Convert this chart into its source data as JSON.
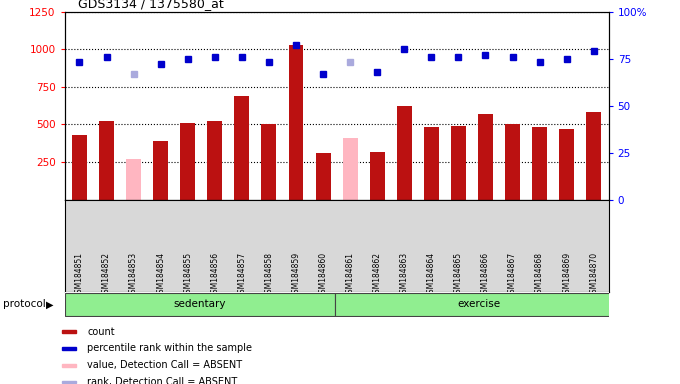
{
  "title": "GDS3134 / 1375580_at",
  "samples": [
    "GSM184851",
    "GSM184852",
    "GSM184853",
    "GSM184854",
    "GSM184855",
    "GSM184856",
    "GSM184857",
    "GSM184858",
    "GSM184859",
    "GSM184860",
    "GSM184861",
    "GSM184862",
    "GSM184863",
    "GSM184864",
    "GSM184865",
    "GSM184866",
    "GSM184867",
    "GSM184868",
    "GSM184869",
    "GSM184870"
  ],
  "count_values": [
    430,
    520,
    270,
    390,
    510,
    520,
    690,
    500,
    1030,
    310,
    410,
    320,
    620,
    480,
    490,
    570,
    500,
    480,
    470,
    580
  ],
  "count_absent": [
    false,
    false,
    true,
    false,
    false,
    false,
    false,
    false,
    false,
    false,
    true,
    false,
    false,
    false,
    false,
    false,
    false,
    false,
    false,
    false
  ],
  "rank_values": [
    73,
    76,
    67,
    72,
    75,
    76,
    76,
    73,
    82,
    67,
    73,
    68,
    80,
    76,
    76,
    77,
    76,
    73,
    75,
    79
  ],
  "rank_absent": [
    false,
    false,
    true,
    false,
    false,
    false,
    false,
    false,
    false,
    false,
    true,
    false,
    false,
    false,
    false,
    false,
    false,
    false,
    false,
    false
  ],
  "ylim_left": [
    0,
    1250
  ],
  "ylim_right": [
    0,
    100
  ],
  "yticks_left": [
    250,
    500,
    750,
    1000,
    1250
  ],
  "yticks_right": [
    0,
    25,
    50,
    75,
    100
  ],
  "ytick_right_labels": [
    "0",
    "25",
    "50",
    "75",
    "100%"
  ],
  "bar_color_present": "#BB1111",
  "bar_color_absent": "#FFB6C1",
  "rank_color_present": "#0000CC",
  "rank_color_absent": "#AAAADD",
  "bg_color": "#D8D8D8",
  "protocol_label": "protocol",
  "sed_label": "sedentary",
  "ex_label": "exercise",
  "group_color": "#90EE90",
  "legend_items": [
    {
      "label": "count",
      "color": "#BB1111"
    },
    {
      "label": "percentile rank within the sample",
      "color": "#0000CC"
    },
    {
      "label": "value, Detection Call = ABSENT",
      "color": "#FFB6C1"
    },
    {
      "label": "rank, Detection Call = ABSENT",
      "color": "#AAAADD"
    }
  ]
}
